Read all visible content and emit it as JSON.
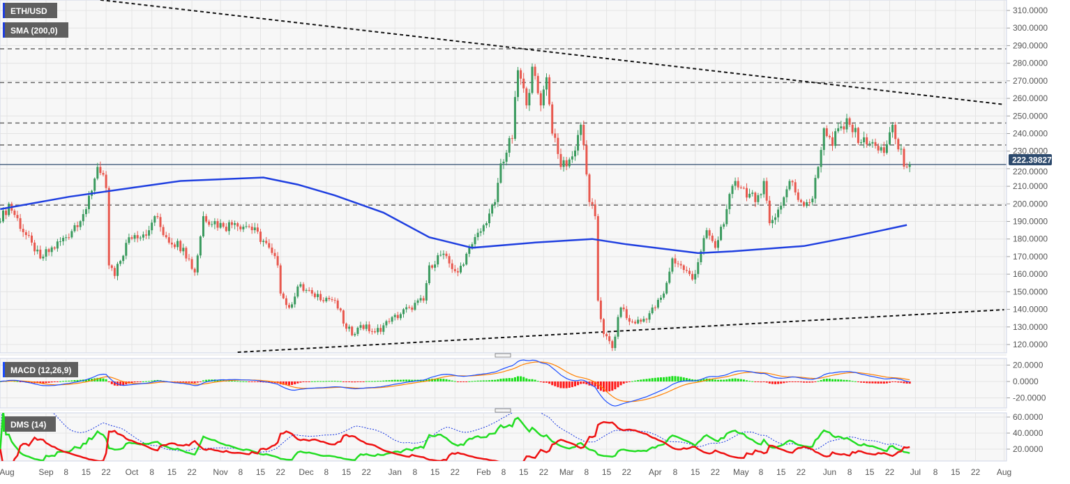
{
  "colors": {
    "up_candle": "#3a9a5e",
    "down_candle": "#e8574d",
    "sma": "#1f3fe0",
    "macd_line": "#1a4cff",
    "signal_line": "#ff8000",
    "hist_pos": "#18e018",
    "hist_neg": "#ff1a1a",
    "di_plus": "#22dd22",
    "di_minus": "#ee1111",
    "adx": "#1030e0",
    "price_tag": "#2d4a6d"
  },
  "chart_data": [
    {
      "type": "candlestick",
      "title": "ETH/USD",
      "indicator_label": "SMA (200,0)",
      "ylim": [
        115,
        315
      ],
      "y_ticks": [
        "310.0000",
        "300.0000",
        "290.0000",
        "280.0000",
        "270.0000",
        "260.0000",
        "250.0000",
        "240.0000",
        "230.0000",
        "220.0000",
        "210.0000",
        "200.0000",
        "190.0000",
        "180.0000",
        "170.0000",
        "160.0000",
        "150.0000",
        "140.0000",
        "130.0000",
        "120.0000"
      ],
      "y_tick_values": [
        310,
        300,
        290,
        280,
        270,
        260,
        250,
        240,
        230,
        220,
        210,
        200,
        190,
        180,
        170,
        160,
        150,
        140,
        130,
        120
      ],
      "current_price": 222.39827,
      "current_price_label": "222.39827",
      "grid": true,
      "close_anchors": [
        [
          "2019-08-16",
          190
        ],
        [
          "2019-08-19",
          200
        ],
        [
          "2019-08-28",
          173
        ],
        [
          "2019-08-30",
          169
        ],
        [
          "2019-09-08",
          181
        ],
        [
          "2019-09-15",
          197
        ],
        [
          "2019-09-19",
          221
        ],
        [
          "2019-09-22",
          209
        ],
        [
          "2019-09-23",
          165
        ],
        [
          "2019-09-25",
          159
        ],
        [
          "2019-09-30",
          181
        ],
        [
          "2019-10-07",
          185
        ],
        [
          "2019-10-09",
          193
        ],
        [
          "2019-10-13",
          181
        ],
        [
          "2019-10-19",
          175
        ],
        [
          "2019-10-23",
          161
        ],
        [
          "2019-10-26",
          193
        ],
        [
          "2019-11-02",
          187
        ],
        [
          "2019-11-06",
          189
        ],
        [
          "2019-11-11",
          187
        ],
        [
          "2019-11-16",
          179
        ],
        [
          "2019-11-21",
          165
        ],
        [
          "2019-11-22",
          149
        ],
        [
          "2019-11-25",
          141
        ],
        [
          "2019-11-28",
          153
        ],
        [
          "2019-12-03",
          149
        ],
        [
          "2019-12-11",
          145
        ],
        [
          "2019-12-15",
          129
        ],
        [
          "2019-12-18",
          126
        ],
        [
          "2019-12-20",
          131
        ],
        [
          "2019-12-25",
          127
        ],
        [
          "2019-12-30",
          133
        ],
        [
          "2020-01-06",
          141
        ],
        [
          "2020-01-11",
          145
        ],
        [
          "2020-01-13",
          165
        ],
        [
          "2020-01-17",
          171
        ],
        [
          "2020-01-23",
          161
        ],
        [
          "2020-01-27",
          175
        ],
        [
          "2020-02-02",
          189
        ],
        [
          "2020-02-05",
          201
        ],
        [
          "2020-02-07",
          223
        ],
        [
          "2020-02-11",
          237
        ],
        [
          "2020-02-13",
          276
        ],
        [
          "2020-02-16",
          256
        ],
        [
          "2020-02-18",
          278
        ],
        [
          "2020-02-21",
          256
        ],
        [
          "2020-02-23",
          272
        ],
        [
          "2020-02-25",
          240
        ],
        [
          "2020-02-28",
          221
        ],
        [
          "2020-03-03",
          227
        ],
        [
          "2020-03-06",
          245
        ],
        [
          "2020-03-09",
          201
        ],
        [
          "2020-03-11",
          193
        ],
        [
          "2020-03-12",
          145
        ],
        [
          "2020-03-14",
          126
        ],
        [
          "2020-03-17",
          118
        ],
        [
          "2020-03-20",
          141
        ],
        [
          "2020-03-23",
          133
        ],
        [
          "2020-03-27",
          133
        ],
        [
          "2020-04-01",
          141
        ],
        [
          "2020-04-04",
          149
        ],
        [
          "2020-04-07",
          169
        ],
        [
          "2020-04-10",
          165
        ],
        [
          "2020-04-14",
          157
        ],
        [
          "2020-04-17",
          173
        ],
        [
          "2020-04-19",
          185
        ],
        [
          "2020-04-22",
          175
        ],
        [
          "2020-04-26",
          197
        ],
        [
          "2020-04-29",
          213
        ],
        [
          "2020-05-02",
          209
        ],
        [
          "2020-05-06",
          201
        ],
        [
          "2020-05-09",
          213
        ],
        [
          "2020-05-11",
          189
        ],
        [
          "2020-05-15",
          199
        ],
        [
          "2020-05-18",
          213
        ],
        [
          "2020-05-22",
          201
        ],
        [
          "2020-05-26",
          203
        ],
        [
          "2020-05-28",
          221
        ],
        [
          "2020-05-30",
          243
        ],
        [
          "2020-06-02",
          233
        ],
        [
          "2020-06-04",
          243
        ],
        [
          "2020-06-08",
          245
        ],
        [
          "2020-06-12",
          235
        ],
        [
          "2020-06-17",
          233
        ],
        [
          "2020-06-20",
          229
        ],
        [
          "2020-06-23",
          245
        ],
        [
          "2020-06-25",
          231
        ],
        [
          "2020-06-28",
          221
        ],
        [
          "2020-06-29",
          222.4
        ]
      ],
      "sma_200": [
        [
          "2019-08-16",
          197
        ],
        [
          "2019-09-09",
          204
        ],
        [
          "2019-10-03",
          209.6
        ],
        [
          "2019-10-18",
          213
        ],
        [
          "2019-11-16",
          215
        ],
        [
          "2019-11-28",
          211
        ],
        [
          "2019-12-11",
          204.8
        ],
        [
          "2019-12-28",
          195
        ],
        [
          "2020-01-13",
          181
        ],
        [
          "2020-01-28",
          175
        ],
        [
          "2020-02-19",
          178
        ],
        [
          "2020-03-10",
          180
        ],
        [
          "2020-03-22",
          177
        ],
        [
          "2020-04-16",
          172
        ],
        [
          "2020-04-28",
          173
        ],
        [
          "2020-05-23",
          176
        ],
        [
          "2020-06-08",
          181
        ],
        [
          "2020-06-28",
          188
        ]
      ],
      "horizontal_levels": [
        288.2,
        269,
        246,
        233.5,
        199.3
      ],
      "trendlines": [
        {
          "from": [
            "2019-09-20",
            316
          ],
          "to": [
            "2020-08-01",
            256.5
          ]
        },
        {
          "from": [
            "2019-11-07",
            115.6
          ],
          "to": [
            "2020-08-01",
            139.8
          ]
        }
      ],
      "x_ticks": [
        {
          "label": "Aug",
          "date": "2019-08-01"
        },
        {
          "label": "Sep",
          "date": "2019-09-01"
        },
        {
          "label": "8",
          "date": "2019-09-08"
        },
        {
          "label": "15",
          "date": "2019-09-15"
        },
        {
          "label": "22",
          "date": "2019-09-22"
        },
        {
          "label": "Oct",
          "date": "2019-10-01"
        },
        {
          "label": "8",
          "date": "2019-10-08"
        },
        {
          "label": "15",
          "date": "2019-10-15"
        },
        {
          "label": "22",
          "date": "2019-10-22"
        },
        {
          "label": "Nov",
          "date": "2019-11-01"
        },
        {
          "label": "8",
          "date": "2019-11-08"
        },
        {
          "label": "15",
          "date": "2019-11-15"
        },
        {
          "label": "22",
          "date": "2019-11-22"
        },
        {
          "label": "Dec",
          "date": "2019-12-01"
        },
        {
          "label": "8",
          "date": "2019-12-08"
        },
        {
          "label": "15",
          "date": "2019-12-15"
        },
        {
          "label": "22",
          "date": "2019-12-22"
        },
        {
          "label": "Jan",
          "date": "2020-01-01"
        },
        {
          "label": "8",
          "date": "2020-01-08"
        },
        {
          "label": "15",
          "date": "2020-01-15"
        },
        {
          "label": "22",
          "date": "2020-01-22"
        },
        {
          "label": "Feb",
          "date": "2020-02-01"
        },
        {
          "label": "8",
          "date": "2020-02-08"
        },
        {
          "label": "15",
          "date": "2020-02-15"
        },
        {
          "label": "22",
          "date": "2020-02-22"
        },
        {
          "label": "Mar",
          "date": "2020-03-01"
        },
        {
          "label": "8",
          "date": "2020-03-08"
        },
        {
          "label": "15",
          "date": "2020-03-15"
        },
        {
          "label": "22",
          "date": "2020-03-22"
        },
        {
          "label": "Apr",
          "date": "2020-04-01"
        },
        {
          "label": "8",
          "date": "2020-04-08"
        },
        {
          "label": "15",
          "date": "2020-04-15"
        },
        {
          "label": "22",
          "date": "2020-04-22"
        },
        {
          "label": "May",
          "date": "2020-05-01"
        },
        {
          "label": "8",
          "date": "2020-05-08"
        },
        {
          "label": "15",
          "date": "2020-05-15"
        },
        {
          "label": "22",
          "date": "2020-05-22"
        },
        {
          "label": "Jun",
          "date": "2020-06-01"
        },
        {
          "label": "8",
          "date": "2020-06-08"
        },
        {
          "label": "15",
          "date": "2020-06-15"
        },
        {
          "label": "22",
          "date": "2020-06-22"
        },
        {
          "label": "Jul",
          "date": "2020-07-01"
        },
        {
          "label": "8",
          "date": "2020-07-08"
        },
        {
          "label": "15",
          "date": "2020-07-15"
        },
        {
          "label": "22",
          "date": "2020-07-22"
        },
        {
          "label": "Aug",
          "date": "2020-08-01"
        }
      ]
    },
    {
      "type": "line",
      "title": "MACD (12,26,9)",
      "params": [
        12,
        26,
        9
      ],
      "y_ticks": [
        "20.0000",
        "0.0000",
        "-20.0000"
      ],
      "y_tick_values": [
        20,
        0,
        -20
      ]
    },
    {
      "type": "line",
      "title": "DMS (14)",
      "period": 14,
      "y_ticks": [
        "60.0000",
        "40.0000",
        "20.0000"
      ],
      "y_tick_values": [
        60,
        40,
        20
      ]
    }
  ]
}
